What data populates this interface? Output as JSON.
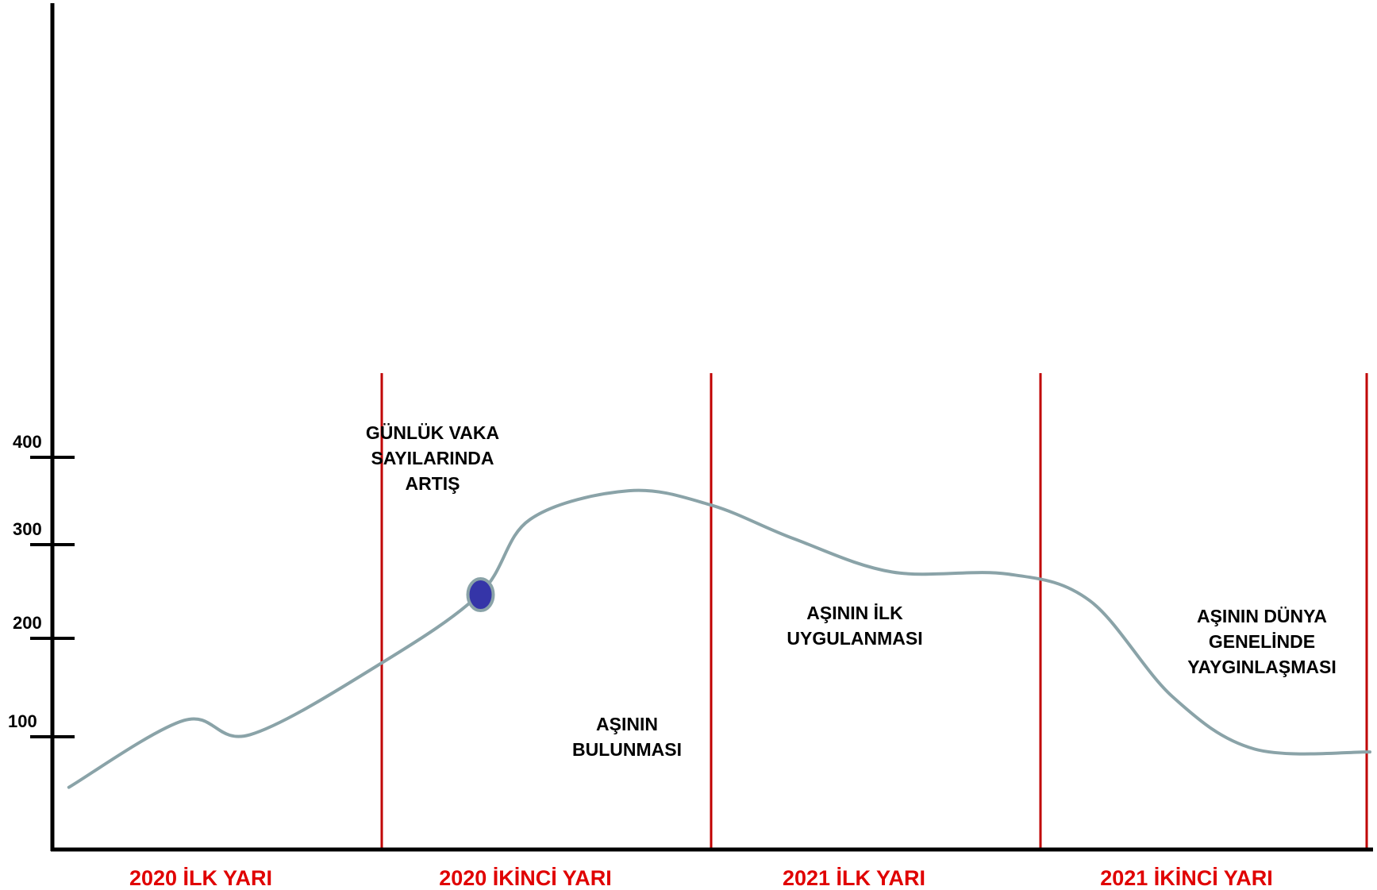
{
  "chart_data": {
    "type": "line",
    "title": "",
    "xlabel": "",
    "ylabel": "",
    "categories": [
      "2020 İLK YARI",
      "2020 İKİNCİ YARI",
      "2021 İLK YARI",
      "2021 İKİNCİ YARI"
    ],
    "y_ticks": [
      "100",
      "200",
      "300",
      "400"
    ],
    "ylim": [
      0,
      400
    ],
    "grid": false,
    "legend": "none",
    "series": [
      {
        "points": [
          {
            "x": 0.05,
            "y": 65
          },
          {
            "x": 0.4,
            "y": 135
          },
          {
            "x": 0.6,
            "y": 120
          },
          {
            "x": 1.0,
            "y": 195
          },
          {
            "x": 1.3,
            "y": 268
          },
          {
            "x": 1.45,
            "y": 345
          },
          {
            "x": 1.75,
            "y": 375
          },
          {
            "x": 2.0,
            "y": 360
          },
          {
            "x": 2.25,
            "y": 325
          },
          {
            "x": 2.55,
            "y": 290
          },
          {
            "x": 2.9,
            "y": 288
          },
          {
            "x": 3.15,
            "y": 260
          },
          {
            "x": 3.4,
            "y": 160
          },
          {
            "x": 3.65,
            "y": 105
          },
          {
            "x": 4.0,
            "y": 102
          }
        ]
      }
    ],
    "markers": [
      {
        "x": 1.3,
        "y": 268
      }
    ],
    "period_dividers": [
      1,
      2,
      3,
      4
    ],
    "annotations": [
      {
        "lines": [
          "GÜNLÜK VAKA",
          "SAYILARINDA",
          "ARTIŞ"
        ],
        "x": 1.3,
        "y": 425
      },
      {
        "lines": [
          "AŞININ",
          "BULUNMASI"
        ],
        "x": 1.78,
        "y": 122
      },
      {
        "lines": [
          "AŞININ İLK",
          "UYGULANMASI"
        ],
        "x": 2.44,
        "y": 252
      },
      {
        "lines": [
          "AŞININ DÜNYA",
          "GENELİNDE",
          "YAYGINLAŞMASI"
        ],
        "x": 3.7,
        "y": 249
      }
    ],
    "colors": {
      "line": "#8aa3a8",
      "marker_fill": "#3535a8",
      "marker_stroke": "#8aa3a8",
      "divider": "#c00000",
      "axis": "#000000",
      "period_label": "#e00000"
    }
  }
}
